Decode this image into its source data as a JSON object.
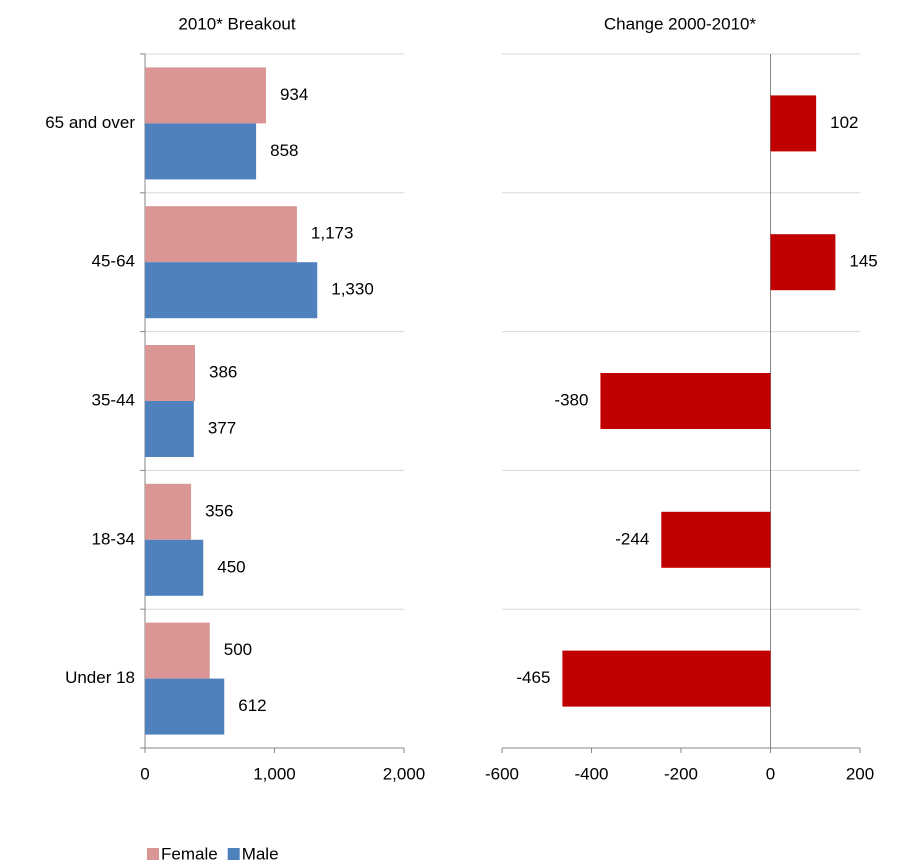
{
  "chart_data": [
    {
      "type": "bar",
      "title": "2010* Breakout",
      "categories": [
        "65 and over",
        "45-64",
        "35-44",
        "18-34",
        "Under 18"
      ],
      "series": [
        {
          "name": "Female",
          "color": "#d99694",
          "values": [
            934,
            1173,
            386,
            356,
            500
          ],
          "value_labels": [
            "934",
            "1,173",
            "386",
            "356",
            "500"
          ]
        },
        {
          "name": "Male",
          "color": "#4f81bd",
          "values": [
            858,
            1330,
            377,
            450,
            612
          ],
          "value_labels": [
            "858",
            "1,330",
            "377",
            "450",
            "612"
          ]
        }
      ],
      "xlim": [
        0,
        2000
      ],
      "xticks": [
        0,
        {
          "value": 1000,
          "label": "1,000"
        },
        {
          "value": 2000,
          "label": "2,000"
        }
      ]
    },
    {
      "type": "bar",
      "title": "Change 2000-2010*",
      "values": [
        102,
        145,
        -380,
        -244,
        -465
      ],
      "color": "#c00000",
      "xlim": [
        -600,
        200
      ],
      "xticks": [
        -600,
        -400,
        -200,
        0,
        200
      ]
    }
  ]
}
